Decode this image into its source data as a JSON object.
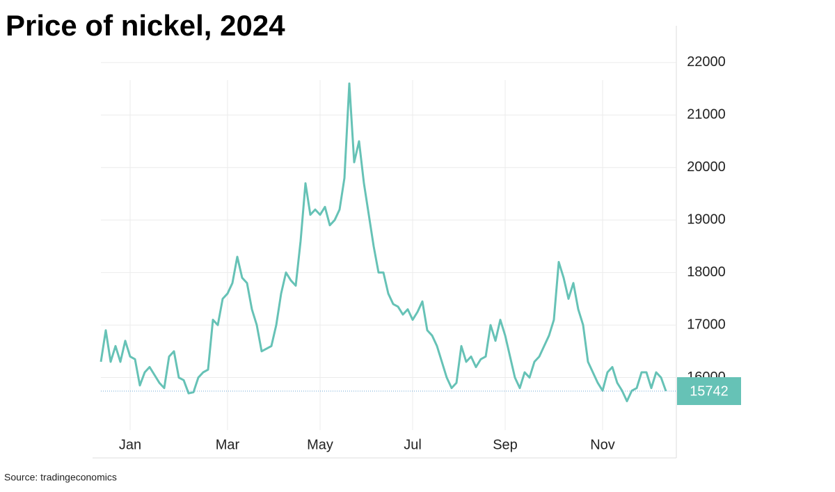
{
  "chart_data": {
    "type": "line",
    "title": "Price of nickel, 2024",
    "source": "Source: tradingeconomics",
    "categories": [
      null,
      null,
      null,
      null,
      null,
      null,
      "Jan",
      null,
      null,
      null,
      null,
      null,
      null,
      null,
      null,
      null,
      null,
      null,
      null,
      null,
      null,
      null,
      null,
      null,
      null,
      null,
      "Mar",
      null,
      null,
      null,
      null,
      null,
      null,
      null,
      null,
      null,
      null,
      null,
      null,
      null,
      null,
      null,
      null,
      null,
      null,
      "May",
      null,
      null,
      null,
      null,
      null,
      null,
      null,
      null,
      null,
      null,
      null,
      null,
      null,
      null,
      null,
      null,
      null,
      null,
      "Jul",
      null,
      null,
      null,
      null,
      null,
      null,
      null,
      null,
      null,
      null,
      null,
      null,
      null,
      null,
      null,
      null,
      null,
      null,
      "Sep",
      null,
      null,
      null,
      null,
      null,
      null,
      null,
      null,
      null,
      null,
      null,
      null,
      null,
      null,
      null,
      null,
      null,
      null,
      null,
      "Nov",
      null,
      null,
      null,
      null,
      null,
      null,
      null,
      null,
      null,
      null,
      null,
      null,
      null
    ],
    "values": [
      16300,
      16900,
      16300,
      16600,
      16300,
      16700,
      16400,
      16350,
      15850,
      16100,
      16200,
      16050,
      15900,
      15800,
      16400,
      16500,
      16000,
      15950,
      15700,
      15720,
      16000,
      16100,
      16150,
      17100,
      17000,
      17500,
      17600,
      17800,
      18300,
      17900,
      17800,
      17300,
      17000,
      16500,
      16550,
      16600,
      17000,
      17600,
      18000,
      17850,
      17750,
      18600,
      19700,
      19100,
      19200,
      19100,
      19250,
      18900,
      19000,
      19200,
      19800,
      21600,
      20100,
      20500,
      19700,
      19100,
      18500,
      18000,
      18000,
      17600,
      17400,
      17350,
      17200,
      17300,
      17100,
      17250,
      17450,
      16900,
      16800,
      16600,
      16300,
      16000,
      15800,
      15900,
      16600,
      16300,
      16400,
      16200,
      16350,
      16400,
      17000,
      16700,
      17100,
      16800,
      16400,
      16000,
      15800,
      16100,
      16000,
      16300,
      16400,
      16600,
      16800,
      17100,
      18200,
      17900,
      17500,
      17800,
      17300,
      17000,
      16300,
      16100,
      15900,
      15750,
      16100,
      16200,
      15900,
      15750,
      15550,
      15750,
      15800,
      16100,
      16100,
      15800,
      16100,
      16000,
      15742
    ],
    "color": "#66c2b6",
    "ylim": [
      15000,
      22700
    ],
    "yticks": [
      16000,
      17000,
      18000,
      19000,
      20000,
      21000,
      22000
    ],
    "grid": true
  }
}
